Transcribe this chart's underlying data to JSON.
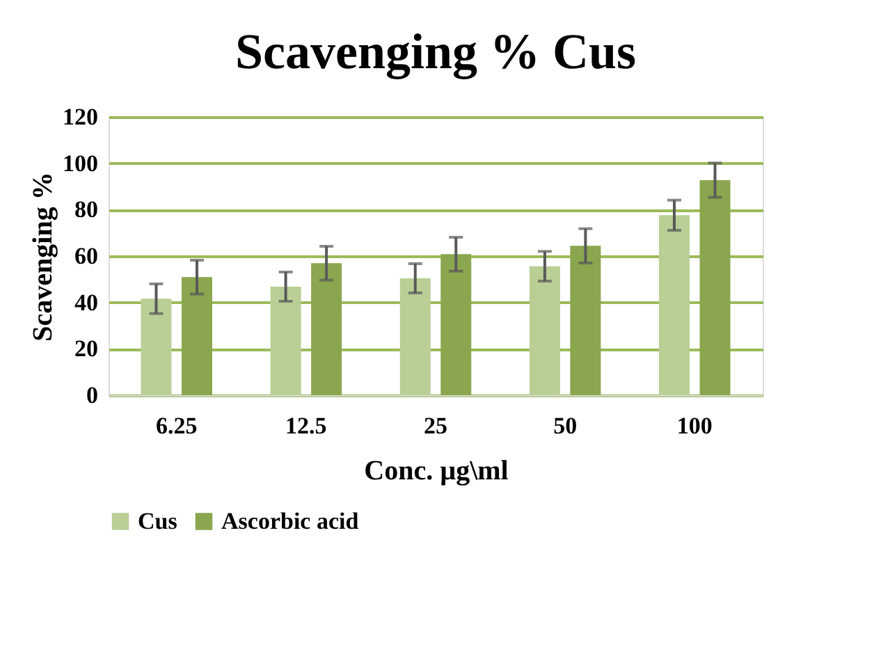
{
  "chart_data": {
    "type": "bar",
    "title": "Scavenging % Cus",
    "xlabel": "Conc. µg\\ml",
    "ylabel": "Scavenging %",
    "categories": [
      "6.25",
      "12.5",
      "25",
      "50",
      "100"
    ],
    "series": [
      {
        "name": "Cus",
        "color": "#b9cf96",
        "values": [
          41.6,
          46.8,
          50.4,
          55.6,
          77.6
        ],
        "errors": [
          6.4,
          6.3,
          6.3,
          6.4,
          6.5
        ]
      },
      {
        "name": "Ascorbic acid",
        "color": "#8aa64f",
        "values": [
          50.9,
          56.9,
          60.8,
          64.4,
          92.7
        ],
        "errors": [
          7.3,
          7.3,
          7.3,
          7.4,
          7.4
        ]
      }
    ],
    "ylim": [
      0,
      120
    ],
    "yticks": [
      0,
      20,
      40,
      60,
      80,
      100,
      120
    ],
    "grid": "y",
    "legend": "bottom"
  }
}
